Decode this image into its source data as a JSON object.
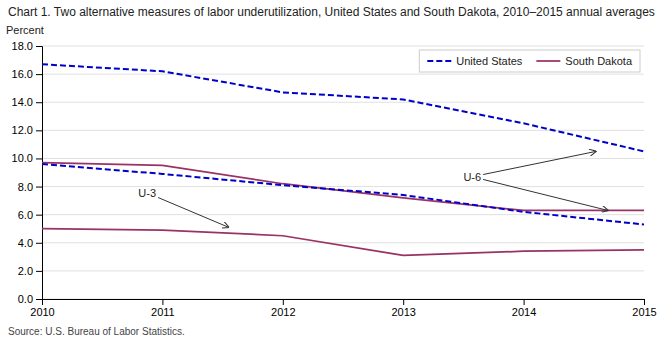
{
  "chart_data": {
    "type": "line",
    "title": "Chart 1. Two alternative measures of labor underutilization, United States and South Dakota, 2010–2015 annual averages",
    "y_label": "Percent",
    "source": "Source: U.S. Bureau of Labor Statistics.",
    "x": [
      2010,
      2011,
      2012,
      2013,
      2014,
      2015
    ],
    "series": [
      {
        "name": "United States",
        "color": "#0000CC",
        "line_style": "dashed",
        "values": [
          16.7,
          16.2,
          14.7,
          14.2,
          12.5,
          10.5
        ]
      },
      {
        "name": "South Dakota",
        "color": "#993366",
        "line_style": "solid",
        "values": [
          9.7,
          9.5,
          8.2,
          7.2,
          6.3,
          6.3
        ]
      },
      {
        "name": "United States",
        "color": "#0000CC",
        "line_style": "dashed",
        "values": [
          9.6,
          8.9,
          8.1,
          7.4,
          6.2,
          5.3
        ]
      },
      {
        "name": "South Dakota",
        "color": "#993366",
        "line_style": "solid",
        "values": [
          5.0,
          4.9,
          4.5,
          3.1,
          3.4,
          3.5
        ]
      }
    ],
    "xlim": [
      2010,
      2015
    ],
    "xticks": [
      2010,
      2011,
      2012,
      2013,
      2014,
      2015
    ],
    "ylim": [
      0,
      18.0
    ],
    "yticks": [
      {
        "value": 0.0,
        "label": "0.0"
      },
      {
        "value": 2.0,
        "label": "2.0"
      },
      {
        "value": 4.0,
        "label": "4.0"
      },
      {
        "value": 6.0,
        "label": "6.0"
      },
      {
        "value": 8.0,
        "label": "8.0"
      },
      {
        "value": 10.0,
        "label": "10.0"
      },
      {
        "value": 12.0,
        "label": "12.0"
      },
      {
        "value": 14.0,
        "label": "14.0"
      },
      {
        "value": 16.0,
        "label": "16.0"
      },
      {
        "value": 18.0,
        "label": "18.0"
      }
    ],
    "grid": true,
    "legend": "upper right",
    "annotations": [
      {
        "text": "U-3",
        "x": 2010.8,
        "y": 7.05,
        "arrows": [
          [
            2011.55,
            5.1
          ]
        ]
      },
      {
        "text": "U-6",
        "x": 2013.5,
        "y": 8.2,
        "arrows": [
          [
            2014.6,
            10.5
          ],
          [
            2014.7,
            6.3
          ]
        ]
      }
    ]
  }
}
